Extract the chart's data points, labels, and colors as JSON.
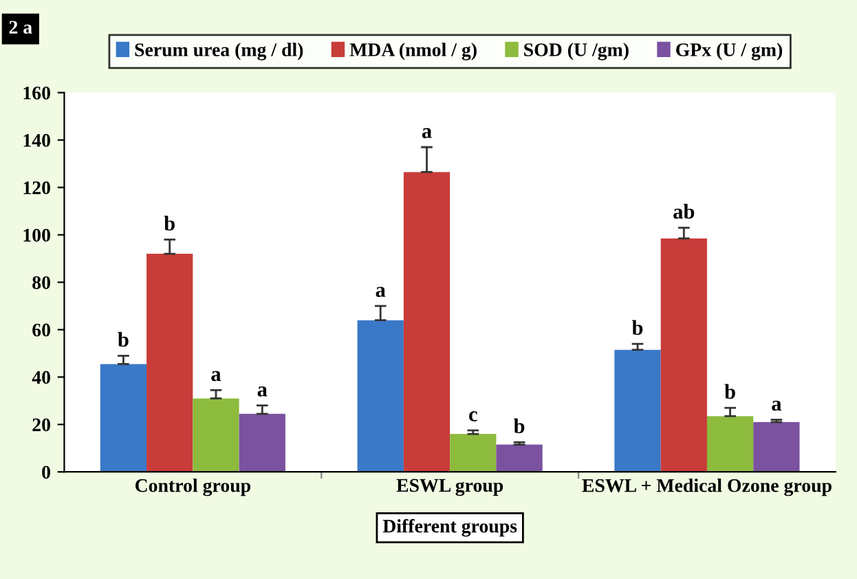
{
  "chart_data": {
    "type": "bar",
    "xlabel": "Different groups",
    "annotations": [
      "2 a"
    ],
    "categories": [
      "Control group",
      "ESWL group",
      "ESWL + Medical Ozone group"
    ],
    "series": [
      {
        "name": "Serum urea (mg / dl)",
        "color": "#3a78c8",
        "values": [
          45.5,
          64,
          51.5
        ],
        "errors": [
          3.5,
          6,
          2.5
        ],
        "value_labels": [
          "b",
          "a",
          "b"
        ]
      },
      {
        "name": "MDA (nmol / g)",
        "color": "#c83c3a",
        "values": [
          92,
          126.5,
          98.5
        ],
        "errors": [
          6,
          10.5,
          4.5
        ],
        "value_labels": [
          "b",
          "a",
          "ab"
        ]
      },
      {
        "name": "SOD (U /gm)",
        "color": "#8dbb3e",
        "values": [
          31,
          16,
          23.5
        ],
        "errors": [
          3.5,
          1.5,
          3.5
        ],
        "value_labels": [
          "a",
          "c",
          "b"
        ]
      },
      {
        "name": "GPx (U / gm)",
        "color": "#7a52a0",
        "values": [
          24.5,
          11.5,
          21
        ],
        "errors": [
          3.5,
          1,
          1
        ],
        "value_labels": [
          "a",
          "b",
          "a"
        ]
      }
    ],
    "ylim": [
      0,
      160
    ],
    "yticks": [
      0,
      20,
      40,
      60,
      80,
      100,
      120,
      140,
      160
    ],
    "grid": false,
    "legend": "top"
  }
}
